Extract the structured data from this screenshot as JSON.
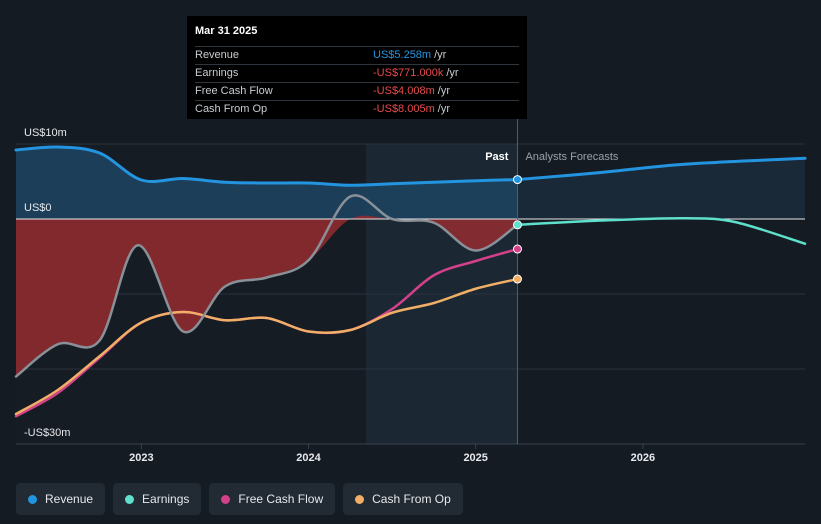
{
  "chart_data": {
    "type": "line",
    "y_axis": {
      "top_label": "US$10m",
      "zero_label": "US$0",
      "bottom_label": "-US$30m",
      "ylim": [
        -30,
        10
      ]
    },
    "x_axis": {
      "ticks": [
        "2023",
        "2024",
        "2025",
        "2026"
      ],
      "xlim": [
        2022.25,
        2026.97
      ]
    },
    "past_label": "Past",
    "forecast_label": "Analysts Forecasts",
    "divider_x": 2025.25,
    "series": [
      {
        "name": "Revenue",
        "color": "#2394df",
        "x": [
          2022.25,
          2022.5,
          2022.75,
          2023.0,
          2023.25,
          2023.5,
          2023.75,
          2024.0,
          2024.25,
          2024.5,
          2024.75,
          2025.0,
          2025.25
        ],
        "y": [
          9.2,
          9.6,
          8.8,
          5.2,
          5.4,
          4.9,
          4.8,
          4.8,
          4.5,
          4.7,
          4.9,
          5.1,
          5.258
        ],
        "forecast_x": [
          2025.25,
          2025.75,
          2026.25,
          2026.97
        ],
        "forecast_y": [
          5.258,
          6.2,
          7.3,
          8.1
        ]
      },
      {
        "name": "Earnings",
        "color": "#5ee0cc",
        "x": [
          2022.25,
          2022.5,
          2022.75,
          2022.98,
          2023.25,
          2023.5,
          2023.75,
          2024.0,
          2024.25,
          2024.5,
          2024.75,
          2025.0,
          2025.25
        ],
        "y": [
          -21.0,
          -16.7,
          -16.2,
          -3.5,
          -15.0,
          -9.0,
          -7.8,
          -5.5,
          3.0,
          0.0,
          -0.5,
          -4.2,
          -0.771
        ],
        "forecast_x": [
          2025.25,
          2025.75,
          2026.25,
          2026.55,
          2026.97
        ],
        "forecast_y": [
          -0.771,
          -0.2,
          0.1,
          -0.4,
          -3.3
        ]
      },
      {
        "name": "Free Cash Flow",
        "color": "#d2418a",
        "x": [
          2022.25,
          2022.5,
          2022.75,
          2023.0,
          2023.25,
          2023.5,
          2023.75,
          2024.0,
          2024.25,
          2024.5,
          2024.75,
          2025.0,
          2025.25
        ],
        "y": [
          -26.3,
          -23.2,
          -18.5,
          -13.8,
          -12.4,
          -13.5,
          -13.2,
          -15.0,
          -14.8,
          -12.0,
          -7.5,
          -5.6,
          -4.008
        ]
      },
      {
        "name": "Cash From Op",
        "color": "#f1ae67",
        "x": [
          2022.25,
          2022.5,
          2022.75,
          2023.0,
          2023.25,
          2023.5,
          2023.75,
          2024.0,
          2024.25,
          2024.5,
          2024.75,
          2025.0,
          2025.25
        ],
        "y": [
          -26.0,
          -22.8,
          -18.3,
          -13.8,
          -12.4,
          -13.5,
          -13.2,
          -15.0,
          -14.8,
          -12.5,
          -11.2,
          -9.3,
          -8.005
        ]
      }
    ]
  },
  "tooltip": {
    "date": "Mar 31 2025",
    "rows": [
      {
        "label": "Revenue",
        "value": "US$5.258m",
        "unit": "/yr",
        "color": "#2394df"
      },
      {
        "label": "Earnings",
        "value": "-US$771.000k",
        "unit": "/yr",
        "color": "#e64b4b"
      },
      {
        "label": "Free Cash Flow",
        "value": "-US$4.008m",
        "unit": "/yr",
        "color": "#e64b4b"
      },
      {
        "label": "Cash From Op",
        "value": "-US$8.005m",
        "unit": "/yr",
        "color": "#e64b4b"
      }
    ]
  },
  "legend": [
    {
      "label": "Revenue",
      "color": "#2394df"
    },
    {
      "label": "Earnings",
      "color": "#5ee0cc"
    },
    {
      "label": "Free Cash Flow",
      "color": "#d2418a"
    },
    {
      "label": "Cash From Op",
      "color": "#f1ae67"
    }
  ]
}
